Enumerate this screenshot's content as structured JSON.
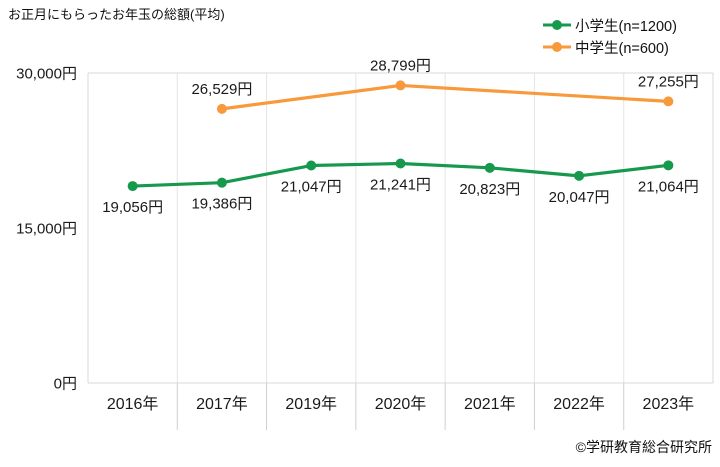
{
  "title": "お正月にもらったお年玉の総額(平均)",
  "copyright": "©学研教育総合研究所",
  "legend": {
    "position": "top-right",
    "items": [
      {
        "label": "小学生(n=1200)",
        "color": "#17994d"
      },
      {
        "label": "中学生(n=600)",
        "color": "#f8993b"
      }
    ]
  },
  "colors": {
    "elementary_green": "#17994d",
    "junior_high_orange": "#f8993b",
    "gridline": "#e4e4e4",
    "plot_border": "#d9d9d9",
    "axis_tick": "#cfcfcf",
    "text": "#1a1a1a"
  },
  "chart_data": {
    "type": "line",
    "title": "お正月にもらったお年玉の総額(平均)",
    "categories": [
      "2016年",
      "2017年",
      "2019年",
      "2020年",
      "2021年",
      "2022年",
      "2023年"
    ],
    "ylim": [
      0,
      30000
    ],
    "y_ticks": [
      {
        "value": 0,
        "label": "0円"
      },
      {
        "value": 15000,
        "label": "15,000円"
      },
      {
        "value": 30000,
        "label": "30,000円"
      }
    ],
    "grid": "vertical-only",
    "legend_position": "top-right",
    "series": [
      {
        "name": "小学生(n=1200)",
        "color": "#17994d",
        "values": [
          19056,
          19386,
          21047,
          21241,
          20823,
          20047,
          21064
        ],
        "labels": [
          "19,056円",
          "19,386円",
          "21,047円",
          "21,241円",
          "20,823円",
          "20,047円",
          "21,064円"
        ],
        "label_position": "below"
      },
      {
        "name": "中学生(n=600)",
        "color": "#f8993b",
        "values": [
          null,
          26529,
          null,
          28799,
          null,
          null,
          27255
        ],
        "labels": [
          null,
          "26,529円",
          null,
          "28,799円",
          null,
          null,
          "27,255円"
        ],
        "label_position": "above"
      }
    ]
  }
}
